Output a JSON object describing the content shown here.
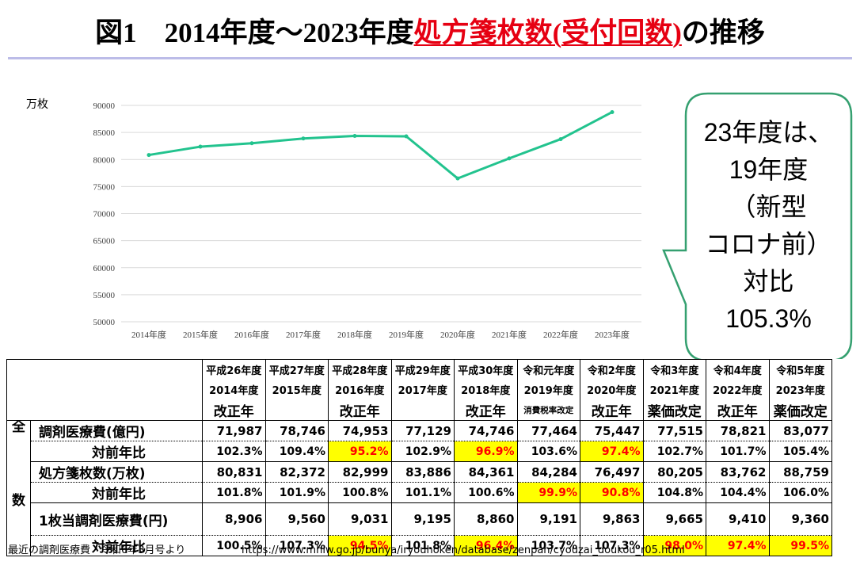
{
  "header": {
    "title_prefix": "図1　2014年度～2023年度",
    "title_highlight": "処方箋枚数(受付回数)",
    "title_suffix": "の推移"
  },
  "colors": {
    "title_red": "#e60012",
    "divider": "#bcbce8",
    "line": "#22c38e",
    "grid": "#d9d9d9",
    "callout_border": "#35a070",
    "highlight_bg": "#ffff00",
    "highlight_text": "#ff0000"
  },
  "chart_data": {
    "type": "line",
    "categories": [
      "2014年度",
      "2015年度",
      "2016年度",
      "2017年度",
      "2018年度",
      "2019年度",
      "2020年度",
      "2021年度",
      "2022年度",
      "2023年度"
    ],
    "values": [
      80831,
      82372,
      82999,
      83886,
      84361,
      84284,
      76497,
      80205,
      83762,
      88759
    ],
    "ylabel": "万枚",
    "ylim": [
      50000,
      90000
    ],
    "y_ticks": [
      90000,
      85000,
      80000,
      75000,
      70000,
      65000,
      60000,
      55000,
      50000
    ],
    "grid": true
  },
  "callout": {
    "lines": [
      "23年度は、",
      "19年度",
      "（新型",
      "コロナ前）",
      "対比",
      "105.3%"
    ]
  },
  "table": {
    "side_labels": {
      "top": "全",
      "bottom": "数"
    },
    "header_era": [
      "平成26年度",
      "平成27年度",
      "平成28年度",
      "平成29年度",
      "平成30年度",
      "令和元年度",
      "令和2年度",
      "令和3年度",
      "令和4年度",
      "令和5年度"
    ],
    "header_year": [
      "2014年度",
      "2015年度",
      "2016年度",
      "2017年度",
      "2018年度",
      "2019年度",
      "2020年度",
      "2021年度",
      "2022年度",
      "2023年度"
    ],
    "header_note": [
      "改正年",
      "",
      "改正年",
      "",
      "改正年",
      "消費税率改定",
      "改正年",
      "薬価改定",
      "改正年",
      "薬価改定"
    ],
    "header_note_small": [
      false,
      false,
      false,
      false,
      false,
      true,
      false,
      false,
      false,
      false
    ],
    "rows": [
      {
        "label": "調剤医療費(億円)",
        "indent": false,
        "values": [
          "71,987",
          "78,746",
          "74,953",
          "77,129",
          "74,746",
          "77,464",
          "75,447",
          "77,515",
          "78,821",
          "83,077"
        ],
        "highlight": [
          false,
          false,
          false,
          false,
          false,
          false,
          false,
          false,
          false,
          false
        ]
      },
      {
        "label": "対前年比",
        "indent": true,
        "values": [
          "102.3%",
          "109.4%",
          "95.2%",
          "102.9%",
          "96.9%",
          "103.6%",
          "97.4%",
          "102.7%",
          "101.7%",
          "105.4%"
        ],
        "highlight": [
          false,
          false,
          true,
          false,
          true,
          false,
          true,
          false,
          false,
          false
        ]
      },
      {
        "label": "処方箋枚数(万枚)",
        "indent": false,
        "values": [
          "80,831",
          "82,372",
          "82,999",
          "83,886",
          "84,361",
          "84,284",
          "76,497",
          "80,205",
          "83,762",
          "88,759"
        ],
        "highlight": [
          false,
          false,
          false,
          false,
          false,
          false,
          false,
          false,
          false,
          false
        ]
      },
      {
        "label": "対前年比",
        "indent": true,
        "values": [
          "101.8%",
          "101.9%",
          "100.8%",
          "101.1%",
          "100.6%",
          "99.9%",
          "90.8%",
          "104.8%",
          "104.4%",
          "106.0%"
        ],
        "highlight": [
          false,
          false,
          false,
          false,
          false,
          true,
          true,
          false,
          false,
          false
        ]
      },
      {
        "label": "1枚当調剤医療費(円)",
        "indent": false,
        "values": [
          "8,906",
          "9,560",
          "9,031",
          "9,195",
          "8,860",
          "9,191",
          "9,863",
          "9,665",
          "9,410",
          "9,360"
        ],
        "highlight": [
          false,
          false,
          false,
          false,
          false,
          false,
          false,
          false,
          false,
          false
        ]
      },
      {
        "label": "対前年比",
        "indent": true,
        "values": [
          "100.5%",
          "107.3%",
          "94.5%",
          "101.8%",
          "96.4%",
          "103.7%",
          "107.3%",
          "98.0%",
          "97.4%",
          "99.5%"
        ],
        "highlight": [
          false,
          false,
          true,
          false,
          true,
          false,
          false,
          true,
          true,
          true
        ]
      }
    ]
  },
  "footer": {
    "source": "最近の調剤医療費　令和6年3月号より",
    "url": "https://www.mhlw.go.jp/bunya/iryouhoken/database/zenpan/cyouzai_doukou_r05.html"
  }
}
